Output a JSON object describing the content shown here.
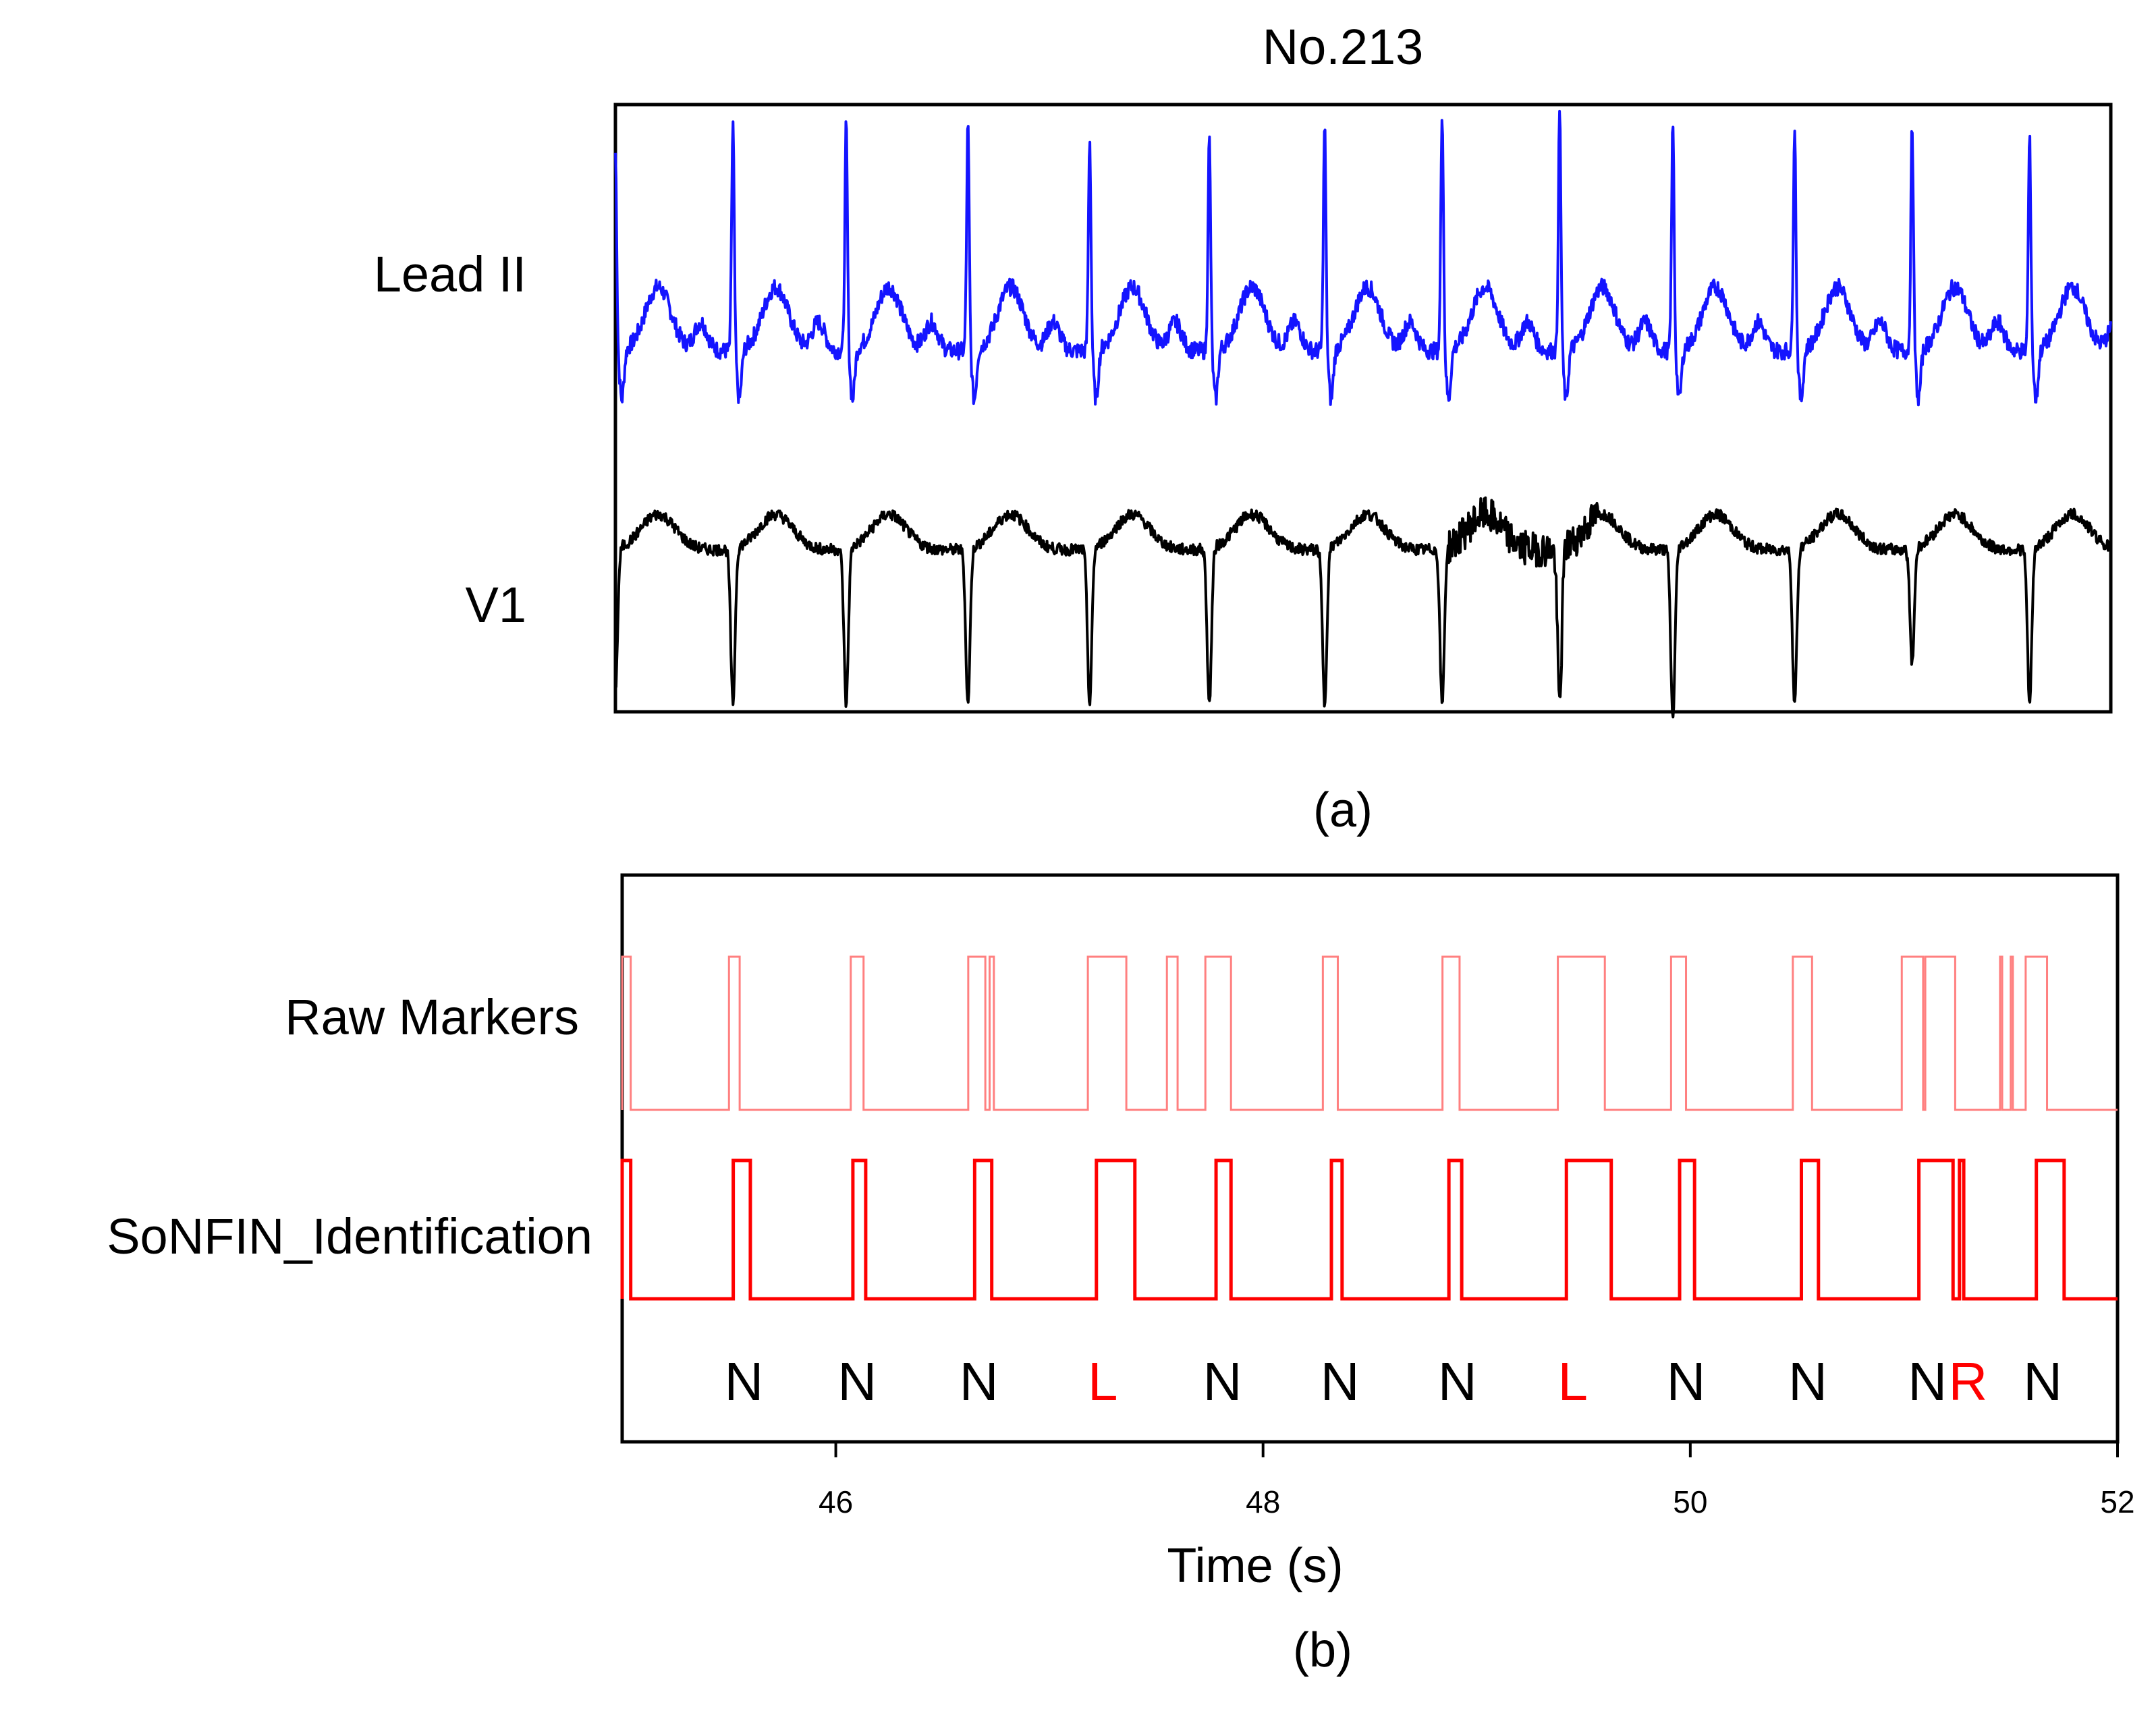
{
  "chart_data": [
    {
      "panel": "(a)",
      "type": "line",
      "title": "No.213",
      "caption": "(a)",
      "xlim": [
        45,
        52
      ],
      "series": [
        {
          "name": "Lead II",
          "color": "#1414ff",
          "baseline": 0.0,
          "r_peaks_s": [
            45.0,
            45.55,
            46.08,
            46.65,
            47.22,
            47.78,
            48.32,
            48.87,
            49.42,
            49.95,
            50.52,
            51.07,
            51.62
          ],
          "r_amplitude": [
            1.4,
            1.6,
            1.6,
            1.6,
            1.5,
            1.5,
            1.6,
            1.7,
            1.7,
            1.6,
            1.6,
            1.6,
            1.5
          ]
        },
        {
          "name": "V1",
          "color": "#000000",
          "baseline": 0.0,
          "s_troughs_s": [
            45.0,
            45.55,
            46.08,
            46.65,
            47.22,
            47.78,
            48.32,
            48.87,
            49.42,
            49.95,
            50.52,
            51.07,
            51.62
          ],
          "s_depth": [
            -1.0,
            -1.1,
            -1.1,
            -1.1,
            -1.1,
            -1.1,
            -1.1,
            -1.1,
            -1.1,
            -1.2,
            -1.1,
            -0.8,
            -1.1
          ]
        }
      ]
    },
    {
      "panel": "(b)",
      "type": "line",
      "caption": "(b)",
      "xlabel": "Time (s)",
      "xlim": [
        45,
        52
      ],
      "xticks": [
        46,
        48,
        50,
        52
      ],
      "series": [
        {
          "name": "Raw Markers",
          "color": "#ff8080",
          "high_intervals_s": [
            [
              45.0,
              45.04
            ],
            [
              45.5,
              45.55
            ],
            [
              46.07,
              46.13
            ],
            [
              46.62,
              46.7
            ],
            [
              46.72,
              46.74
            ],
            [
              47.18,
              47.36
            ],
            [
              47.55,
              47.6
            ],
            [
              47.73,
              47.85
            ],
            [
              48.28,
              48.35
            ],
            [
              48.84,
              48.92
            ],
            [
              49.38,
              49.6
            ],
            [
              49.91,
              49.98
            ],
            [
              50.48,
              50.57
            ],
            [
              50.99,
              51.09
            ],
            [
              51.1,
              51.24
            ],
            [
              51.45,
              51.46
            ],
            [
              51.5,
              51.51
            ],
            [
              51.57,
              51.67
            ]
          ]
        },
        {
          "name": "SoNFIN_Identification",
          "color": "#ff0000",
          "high_intervals_s": [
            [
              45.0,
              45.04
            ],
            [
              45.52,
              45.6
            ],
            [
              46.08,
              46.14
            ],
            [
              46.65,
              46.73
            ],
            [
              47.22,
              47.4
            ],
            [
              47.78,
              47.85
            ],
            [
              48.32,
              48.37
            ],
            [
              48.87,
              48.93
            ],
            [
              49.42,
              49.63
            ],
            [
              49.95,
              50.02
            ],
            [
              50.52,
              50.6
            ],
            [
              51.07,
              51.23
            ],
            [
              51.26,
              51.28
            ],
            [
              51.62,
              51.75
            ]
          ]
        }
      ],
      "beat_labels": [
        {
          "t": 45.57,
          "label": "N",
          "color": "#000000"
        },
        {
          "t": 46.1,
          "label": "N",
          "color": "#000000"
        },
        {
          "t": 46.67,
          "label": "N",
          "color": "#000000"
        },
        {
          "t": 47.25,
          "label": "L",
          "color": "#ff0000"
        },
        {
          "t": 47.81,
          "label": "N",
          "color": "#000000"
        },
        {
          "t": 48.36,
          "label": "N",
          "color": "#000000"
        },
        {
          "t": 48.91,
          "label": "N",
          "color": "#000000"
        },
        {
          "t": 49.45,
          "label": "L",
          "color": "#ff0000"
        },
        {
          "t": 49.98,
          "label": "N",
          "color": "#000000"
        },
        {
          "t": 50.55,
          "label": "N",
          "color": "#000000"
        },
        {
          "t": 51.11,
          "label": "N",
          "color": "#000000"
        },
        {
          "t": 51.3,
          "label": "R",
          "color": "#ff0000"
        },
        {
          "t": 51.65,
          "label": "N",
          "color": "#000000"
        }
      ]
    }
  ]
}
